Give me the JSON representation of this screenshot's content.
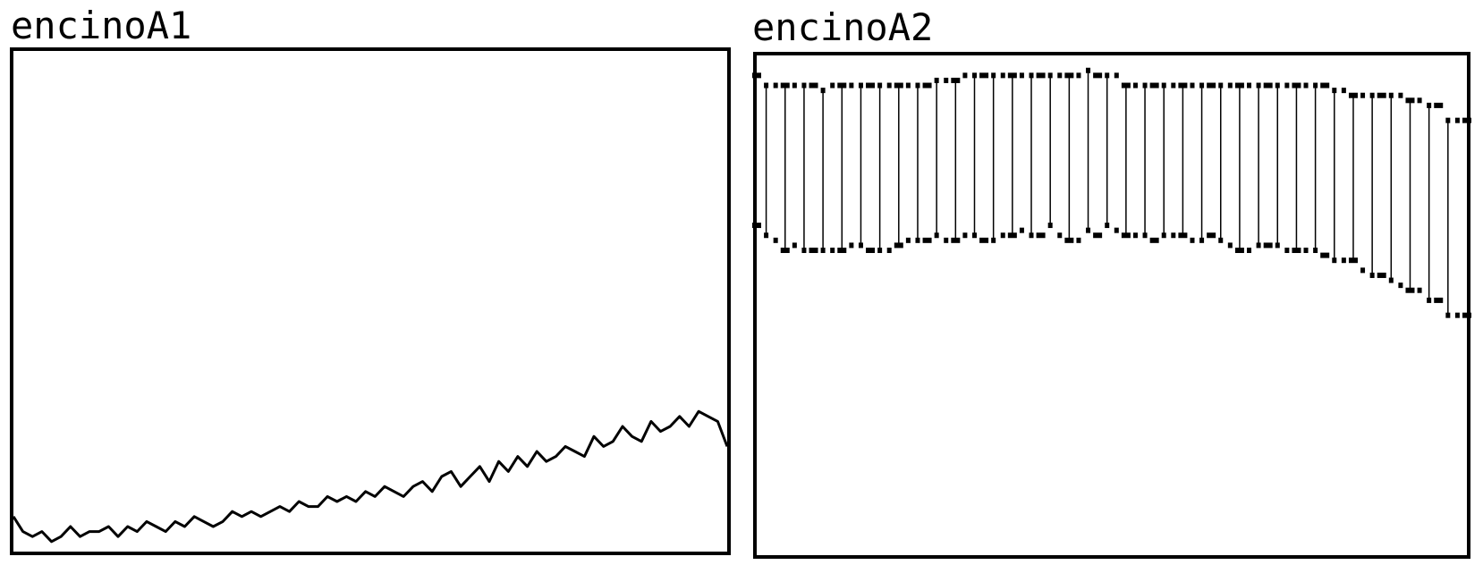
{
  "chart_data": [
    {
      "type": "line",
      "title": "encinoA1",
      "xlabel": "",
      "ylabel": "",
      "x_range": [
        0,
        300
      ],
      "ylim": [
        0,
        1
      ],
      "grid": false,
      "series": [
        {
          "color": "#000000",
          "description_values_note": "",
          "x": [
            0,
            4,
            8,
            12,
            16,
            20,
            24,
            28,
            32,
            36,
            40,
            44,
            48,
            52,
            56,
            60,
            64,
            68,
            72,
            76,
            80,
            84,
            88,
            92,
            96,
            100,
            104,
            108,
            112,
            116,
            120,
            124,
            128,
            132,
            136,
            140,
            144,
            148,
            152,
            156,
            160,
            164,
            168,
            172,
            176,
            180,
            184,
            188,
            192,
            196,
            200,
            204,
            208,
            212,
            216,
            220,
            224,
            228,
            232,
            236,
            240,
            244,
            248,
            252,
            256,
            260,
            264,
            268,
            272,
            276,
            280,
            284,
            288,
            292,
            296,
            300
          ],
          "values": [
            0.07,
            0.04,
            0.03,
            0.04,
            0.02,
            0.03,
            0.05,
            0.03,
            0.04,
            0.04,
            0.05,
            0.03,
            0.05,
            0.04,
            0.06,
            0.05,
            0.04,
            0.06,
            0.05,
            0.07,
            0.06,
            0.05,
            0.06,
            0.08,
            0.07,
            0.08,
            0.07,
            0.08,
            0.09,
            0.08,
            0.1,
            0.09,
            0.09,
            0.11,
            0.1,
            0.11,
            0.1,
            0.12,
            0.11,
            0.13,
            0.12,
            0.11,
            0.13,
            0.14,
            0.12,
            0.15,
            0.16,
            0.13,
            0.15,
            0.17,
            0.14,
            0.18,
            0.16,
            0.19,
            0.17,
            0.2,
            0.18,
            0.19,
            0.21,
            0.2,
            0.19,
            0.23,
            0.21,
            0.22,
            0.25,
            0.23,
            0.22,
            0.26,
            0.24,
            0.25,
            0.27,
            0.25,
            0.28,
            0.27,
            0.26,
            0.21
          ]
        }
      ]
    },
    {
      "type": "scatter",
      "title": "encinoA2",
      "xlabel": "",
      "ylabel": "",
      "x_range": [
        0,
        300
      ],
      "ylim": [
        0,
        1
      ],
      "grid": false,
      "series": [
        {
          "color": "#000000",
          "x": [
            0,
            4,
            8,
            12,
            16,
            20,
            24,
            28,
            32,
            36,
            40,
            44,
            48,
            52,
            56,
            60,
            64,
            68,
            72,
            76,
            80,
            84,
            88,
            92,
            96,
            100,
            104,
            108,
            112,
            116,
            120,
            124,
            128,
            132,
            136,
            140,
            144,
            148,
            152,
            156,
            160,
            164,
            168,
            172,
            176,
            180,
            184,
            188,
            192,
            196,
            200,
            204,
            208,
            212,
            216,
            220,
            224,
            228,
            232,
            236,
            240,
            244,
            248,
            252,
            256,
            260,
            264,
            268,
            272,
            276,
            280,
            284,
            288,
            292,
            296,
            300
          ],
          "values": [
            0.96,
            0.94,
            0.94,
            0.94,
            0.94,
            0.94,
            0.94,
            0.93,
            0.94,
            0.94,
            0.94,
            0.94,
            0.94,
            0.94,
            0.94,
            0.94,
            0.94,
            0.94,
            0.94,
            0.95,
            0.95,
            0.95,
            0.96,
            0.96,
            0.96,
            0.96,
            0.96,
            0.96,
            0.96,
            0.96,
            0.96,
            0.96,
            0.96,
            0.96,
            0.96,
            0.97,
            0.96,
            0.96,
            0.96,
            0.94,
            0.94,
            0.94,
            0.94,
            0.94,
            0.94,
            0.94,
            0.94,
            0.94,
            0.94,
            0.94,
            0.94,
            0.94,
            0.94,
            0.94,
            0.94,
            0.94,
            0.94,
            0.94,
            0.94,
            0.94,
            0.94,
            0.93,
            0.93,
            0.92,
            0.92,
            0.92,
            0.92,
            0.92,
            0.92,
            0.91,
            0.91,
            0.9,
            0.9,
            0.87,
            0.87,
            0.87
          ]
        },
        {
          "color": "#000000",
          "x": [
            0,
            4,
            8,
            12,
            16,
            20,
            24,
            28,
            32,
            36,
            40,
            44,
            48,
            52,
            56,
            60,
            64,
            68,
            72,
            76,
            80,
            84,
            88,
            92,
            96,
            100,
            104,
            108,
            112,
            116,
            120,
            124,
            128,
            132,
            136,
            140,
            144,
            148,
            152,
            156,
            160,
            164,
            168,
            172,
            176,
            180,
            184,
            188,
            192,
            196,
            200,
            204,
            208,
            212,
            216,
            220,
            224,
            228,
            232,
            236,
            240,
            244,
            248,
            252,
            256,
            260,
            264,
            268,
            272,
            276,
            280,
            284,
            288,
            292,
            296,
            300
          ],
          "values": [
            0.66,
            0.64,
            0.63,
            0.61,
            0.62,
            0.61,
            0.61,
            0.61,
            0.61,
            0.61,
            0.62,
            0.62,
            0.61,
            0.61,
            0.61,
            0.62,
            0.63,
            0.63,
            0.63,
            0.64,
            0.63,
            0.63,
            0.64,
            0.64,
            0.63,
            0.63,
            0.64,
            0.64,
            0.65,
            0.64,
            0.64,
            0.66,
            0.64,
            0.63,
            0.63,
            0.65,
            0.64,
            0.66,
            0.65,
            0.64,
            0.64,
            0.64,
            0.63,
            0.64,
            0.64,
            0.64,
            0.63,
            0.63,
            0.64,
            0.63,
            0.62,
            0.61,
            0.61,
            0.62,
            0.62,
            0.62,
            0.61,
            0.61,
            0.61,
            0.61,
            0.6,
            0.59,
            0.59,
            0.59,
            0.57,
            0.56,
            0.56,
            0.55,
            0.54,
            0.53,
            0.53,
            0.51,
            0.51,
            0.48,
            0.48,
            0.48
          ]
        }
      ]
    }
  ]
}
